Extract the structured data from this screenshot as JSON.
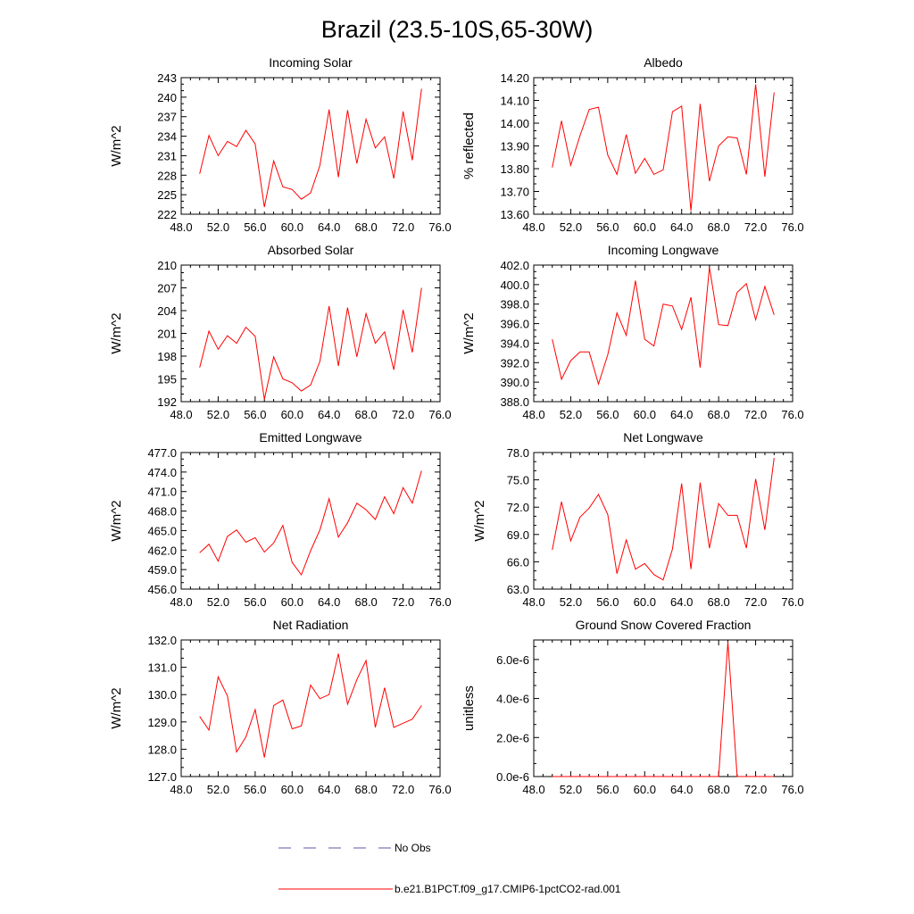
{
  "figure": {
    "title": "Brazil (23.5-10S,65-30W)",
    "legend": [
      {
        "label": "No Obs",
        "color": "#5a5aa8",
        "style": "dashed"
      },
      {
        "label": "b.e21.B1PCT.f09_g17.CMIP6-1pctCO2-rad.001",
        "color": "#ff0000",
        "style": "solid"
      }
    ]
  },
  "chart_data": [
    {
      "type": "line",
      "title": "Incoming Solar",
      "xlabel": "",
      "ylabel": "W/m^2",
      "xlim": [
        48,
        76
      ],
      "ylim": [
        222,
        243
      ],
      "xticks": [
        "48.0",
        "52.0",
        "56.0",
        "60.0",
        "64.0",
        "68.0",
        "72.0",
        "76.0"
      ],
      "yticks": [
        "222",
        "225",
        "228",
        "231",
        "234",
        "237",
        "240",
        "243"
      ],
      "series": [
        {
          "color": "#ff0000",
          "x": [
            50,
            51,
            52,
            53,
            54,
            55,
            56,
            57,
            58,
            59,
            60,
            61,
            62,
            63,
            64,
            65,
            66,
            67,
            68,
            69,
            70,
            71,
            72,
            73,
            74
          ],
          "values": [
            228.2,
            234.1,
            231.0,
            233.2,
            232.4,
            234.9,
            232.8,
            223.1,
            230.2,
            226.2,
            225.8,
            224.3,
            225.3,
            229.5,
            238.1,
            227.7,
            238.0,
            229.8,
            236.6,
            232.2,
            233.9,
            227.5,
            237.8,
            230.3,
            241.3
          ]
        }
      ]
    },
    {
      "type": "line",
      "title": "Albedo",
      "xlabel": "",
      "ylabel": "% reflected",
      "xlim": [
        48,
        76
      ],
      "ylim": [
        13.6,
        14.2
      ],
      "xticks": [
        "48.0",
        "52.0",
        "56.0",
        "60.0",
        "64.0",
        "68.0",
        "72.0",
        "76.0"
      ],
      "yticks": [
        "13.60",
        "13.70",
        "13.80",
        "13.90",
        "14.00",
        "14.10",
        "14.20"
      ],
      "series": [
        {
          "color": "#ff0000",
          "x": [
            50,
            51,
            52,
            53,
            54,
            55,
            56,
            57,
            58,
            59,
            60,
            61,
            62,
            63,
            64,
            65,
            66,
            67,
            68,
            69,
            70,
            71,
            72,
            73,
            74
          ],
          "values": [
            13.805,
            14.01,
            13.815,
            13.945,
            14.06,
            14.07,
            13.86,
            13.775,
            13.95,
            13.78,
            13.845,
            13.775,
            13.795,
            14.05,
            14.075,
            13.615,
            14.085,
            13.745,
            13.9,
            13.94,
            13.935,
            13.775,
            14.17,
            13.765,
            14.135
          ]
        }
      ]
    },
    {
      "type": "line",
      "title": "Absorbed Solar",
      "xlabel": "",
      "ylabel": "W/m^2",
      "xlim": [
        48,
        76
      ],
      "ylim": [
        192,
        210
      ],
      "xticks": [
        "48.0",
        "52.0",
        "56.0",
        "60.0",
        "64.0",
        "68.0",
        "72.0",
        "76.0"
      ],
      "yticks": [
        "192",
        "195",
        "198",
        "201",
        "204",
        "207",
        "210"
      ],
      "series": [
        {
          "color": "#ff0000",
          "x": [
            50,
            51,
            52,
            53,
            54,
            55,
            56,
            57,
            58,
            59,
            60,
            61,
            62,
            63,
            64,
            65,
            66,
            67,
            68,
            69,
            70,
            71,
            72,
            73,
            74
          ],
          "values": [
            196.5,
            201.3,
            198.9,
            200.7,
            199.7,
            201.8,
            200.6,
            192.3,
            197.9,
            195.0,
            194.5,
            193.4,
            194.2,
            197.3,
            204.6,
            196.7,
            204.4,
            197.9,
            203.6,
            199.7,
            201.2,
            196.2,
            204.1,
            198.5,
            207.0
          ]
        }
      ]
    },
    {
      "type": "line",
      "title": "Incoming Longwave",
      "xlabel": "",
      "ylabel": "W/m^2",
      "xlim": [
        48,
        76
      ],
      "ylim": [
        388,
        402
      ],
      "xticks": [
        "48.0",
        "52.0",
        "56.0",
        "60.0",
        "64.0",
        "68.0",
        "72.0",
        "76.0"
      ],
      "yticks": [
        "388.0",
        "390.0",
        "392.0",
        "394.0",
        "396.0",
        "398.0",
        "400.0",
        "402.0"
      ],
      "series": [
        {
          "color": "#ff0000",
          "x": [
            50,
            51,
            52,
            53,
            54,
            55,
            56,
            57,
            58,
            59,
            60,
            61,
            62,
            63,
            64,
            65,
            66,
            67,
            68,
            69,
            70,
            71,
            72,
            73,
            74
          ],
          "values": [
            394.4,
            390.3,
            392.2,
            393.1,
            393.1,
            389.8,
            392.8,
            397.1,
            394.8,
            400.4,
            394.4,
            393.7,
            398.0,
            397.8,
            395.4,
            398.7,
            391.5,
            401.8,
            395.9,
            395.8,
            399.2,
            400.1,
            396.4,
            399.8,
            396.9
          ]
        }
      ]
    },
    {
      "type": "line",
      "title": "Emitted Longwave",
      "xlabel": "",
      "ylabel": "W/m^2",
      "xlim": [
        48,
        76
      ],
      "ylim": [
        456,
        477
      ],
      "xticks": [
        "48.0",
        "52.0",
        "56.0",
        "60.0",
        "64.0",
        "68.0",
        "72.0",
        "76.0"
      ],
      "yticks": [
        "456.0",
        "459.0",
        "462.0",
        "465.0",
        "468.0",
        "471.0",
        "474.0",
        "477.0"
      ],
      "series": [
        {
          "color": "#ff0000",
          "x": [
            50,
            51,
            52,
            53,
            54,
            55,
            56,
            57,
            58,
            59,
            60,
            61,
            62,
            63,
            64,
            65,
            66,
            67,
            68,
            69,
            70,
            71,
            72,
            73,
            74
          ],
          "values": [
            461.6,
            462.9,
            460.3,
            464.1,
            465.1,
            463.2,
            463.9,
            461.7,
            463.1,
            465.8,
            460.1,
            458.2,
            461.9,
            465.1,
            469.9,
            464.0,
            466.2,
            469.2,
            468.2,
            466.7,
            470.2,
            467.6,
            471.6,
            469.2,
            474.2
          ]
        }
      ]
    },
    {
      "type": "line",
      "title": "Net Longwave",
      "xlabel": "",
      "ylabel": "W/m^2",
      "xlim": [
        48,
        76
      ],
      "ylim": [
        63,
        78
      ],
      "xticks": [
        "48.0",
        "52.0",
        "56.0",
        "60.0",
        "64.0",
        "68.0",
        "72.0",
        "76.0"
      ],
      "yticks": [
        "63.0",
        "66.0",
        "69.0",
        "72.0",
        "75.0",
        "78.0"
      ],
      "series": [
        {
          "color": "#ff0000",
          "x": [
            50,
            51,
            52,
            53,
            54,
            55,
            56,
            57,
            58,
            59,
            60,
            61,
            62,
            63,
            64,
            65,
            66,
            67,
            68,
            69,
            70,
            71,
            72,
            73,
            74
          ],
          "values": [
            67.3,
            72.6,
            68.3,
            70.9,
            71.9,
            73.4,
            71.2,
            64.7,
            68.4,
            65.2,
            65.8,
            64.6,
            64.0,
            67.4,
            74.6,
            65.2,
            74.7,
            67.5,
            72.4,
            71.1,
            71.1,
            67.5,
            75.1,
            69.5,
            77.4
          ]
        }
      ]
    },
    {
      "type": "line",
      "title": "Net Radiation",
      "xlabel": "",
      "ylabel": "W/m^2",
      "xlim": [
        48,
        76
      ],
      "ylim": [
        127,
        132
      ],
      "xticks": [
        "48.0",
        "52.0",
        "56.0",
        "60.0",
        "64.0",
        "68.0",
        "72.0",
        "76.0"
      ],
      "yticks": [
        "127.0",
        "128.0",
        "129.0",
        "130.0",
        "131.0",
        "132.0"
      ],
      "series": [
        {
          "color": "#ff0000",
          "x": [
            50,
            51,
            52,
            53,
            54,
            55,
            56,
            57,
            58,
            59,
            60,
            61,
            62,
            63,
            64,
            65,
            66,
            67,
            68,
            69,
            70,
            71,
            72,
            73,
            74
          ],
          "values": [
            129.2,
            128.7,
            130.65,
            129.95,
            127.9,
            128.45,
            129.45,
            127.7,
            129.6,
            129.8,
            128.75,
            128.85,
            130.35,
            129.85,
            130.0,
            131.5,
            129.65,
            130.55,
            131.25,
            128.8,
            130.25,
            128.8,
            128.95,
            129.1,
            129.6
          ]
        }
      ]
    },
    {
      "type": "line",
      "title": "Ground Snow Covered Fraction",
      "xlabel": "",
      "ylabel": "unitless",
      "xlim": [
        48,
        76
      ],
      "ylim": [
        0,
        7e-06
      ],
      "xticks": [
        "48.0",
        "52.0",
        "56.0",
        "60.0",
        "64.0",
        "68.0",
        "72.0",
        "76.0"
      ],
      "yticks": [
        "0.0e-6",
        "2.0e-6",
        "4.0e-6",
        "6.0e-6"
      ],
      "ytick_values": [
        0,
        2e-06,
        4e-06,
        6e-06
      ],
      "series": [
        {
          "color": "#ff0000",
          "x": [
            50,
            51,
            52,
            53,
            54,
            55,
            56,
            57,
            58,
            59,
            60,
            61,
            62,
            63,
            64,
            65,
            66,
            67,
            68,
            69,
            70,
            71,
            72,
            73,
            74
          ],
          "values": [
            0,
            0,
            0,
            0,
            0,
            0,
            0,
            0,
            0,
            0,
            0,
            0,
            0,
            0,
            0,
            0,
            0,
            0,
            0,
            6.9e-06,
            0,
            0,
            0,
            0,
            0
          ]
        }
      ]
    }
  ]
}
